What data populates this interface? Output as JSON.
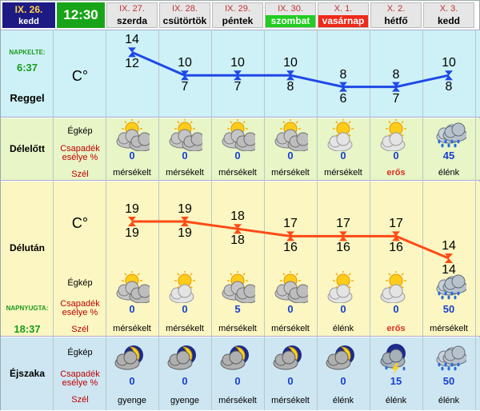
{
  "today": {
    "date": "IX. 26.",
    "dayname": "kedd",
    "time": "12:30"
  },
  "labels": {
    "sunrise_label": "NAPKELTE:",
    "sunrise_time": "6:37",
    "morning": "Reggel",
    "unit_top": "C°",
    "forenoon": "Délelőtt",
    "afternoon": "Délután",
    "unit_mid": "C°",
    "sunset_label": "NAPNYUGTA:",
    "sunset_time": "18:37",
    "night": "Éjszaka",
    "sky": "Égkép",
    "precip": "Csapadék esélye %",
    "wind": "Szél"
  },
  "days": [
    {
      "date": "IX. 27.",
      "name": "szerda",
      "highlight": "none"
    },
    {
      "date": "IX. 28.",
      "name": "csütörtök",
      "highlight": "none"
    },
    {
      "date": "IX. 29.",
      "name": "péntek",
      "highlight": "none"
    },
    {
      "date": "IX. 30.",
      "name": "szombat",
      "highlight": "green"
    },
    {
      "date": "X. 1.",
      "name": "vasárnap",
      "highlight": "red"
    },
    {
      "date": "X. 2.",
      "name": "hétfő",
      "highlight": "none"
    },
    {
      "date": "X. 3.",
      "name": "kedd",
      "highlight": "none"
    }
  ],
  "morning": {
    "top": [
      14,
      10,
      10,
      10,
      8,
      8,
      10
    ],
    "bottom": [
      12,
      7,
      7,
      8,
      6,
      7,
      8
    ]
  },
  "forenoon": {
    "icons": [
      "partly-cloudy-icon",
      "partly-cloudy-icon",
      "partly-cloudy-icon",
      "partly-cloudy-icon",
      "sun-cloud-icon",
      "sun-cloud-icon",
      "rain-cloud-icon"
    ],
    "precip": [
      "0",
      "0",
      "0",
      "0",
      "0",
      "0",
      "45"
    ],
    "wind": [
      "mérsékelt",
      "mérsékelt",
      "mérsékelt",
      "mérsékelt",
      "mérsékelt",
      "erős",
      "élénk"
    ],
    "wind_strong": [
      false,
      false,
      false,
      false,
      false,
      true,
      false
    ]
  },
  "afternoon": {
    "top": [
      19,
      19,
      18,
      17,
      17,
      17,
      14
    ],
    "bottom": [
      19,
      19,
      18,
      16,
      16,
      16,
      14
    ],
    "icons": [
      "partly-cloudy-icon",
      "sun-cloud-icon",
      "partly-cloudy-icon",
      "partly-cloudy-icon",
      "sun-cloud-icon",
      "sun-cloud-icon",
      "rain-cloud-icon"
    ],
    "precip": [
      "0",
      "0",
      "5",
      "0",
      "0",
      "0",
      "50"
    ],
    "wind": [
      "mérsékelt",
      "mérsékelt",
      "mérsékelt",
      "mérsékelt",
      "élénk",
      "erős",
      "mérsékelt"
    ],
    "wind_strong": [
      false,
      false,
      false,
      false,
      false,
      true,
      false
    ]
  },
  "night": {
    "icons": [
      "moon-cloud-icon",
      "moon-cloud-icon",
      "moon-cloud-icon",
      "moon-cloud-icon",
      "moon-cloud-icon",
      "thunder-cloud-icon",
      "rain-cloud-icon"
    ],
    "precip": [
      "0",
      "0",
      "0",
      "0",
      "0",
      "15",
      "50"
    ],
    "wind": [
      "gyenge",
      "gyenge",
      "mérsékelt",
      "mérsékelt",
      "élénk",
      "élénk",
      "élénk"
    ],
    "wind_strong": [
      false,
      false,
      false,
      false,
      false,
      false,
      false
    ]
  },
  "colors": {
    "morning_bg": "#cdf1f7",
    "morning_line": "#1f48e8",
    "forenoon_bg": "#e7f5c7",
    "afternoon_bg": "#fbf6c2",
    "afternoon_line": "#ff4a16",
    "night_bg": "#cde6f2",
    "green_tag": "#22cc22",
    "red_tag": "#ee2a1a",
    "date_bg": "#2a2a8a"
  }
}
